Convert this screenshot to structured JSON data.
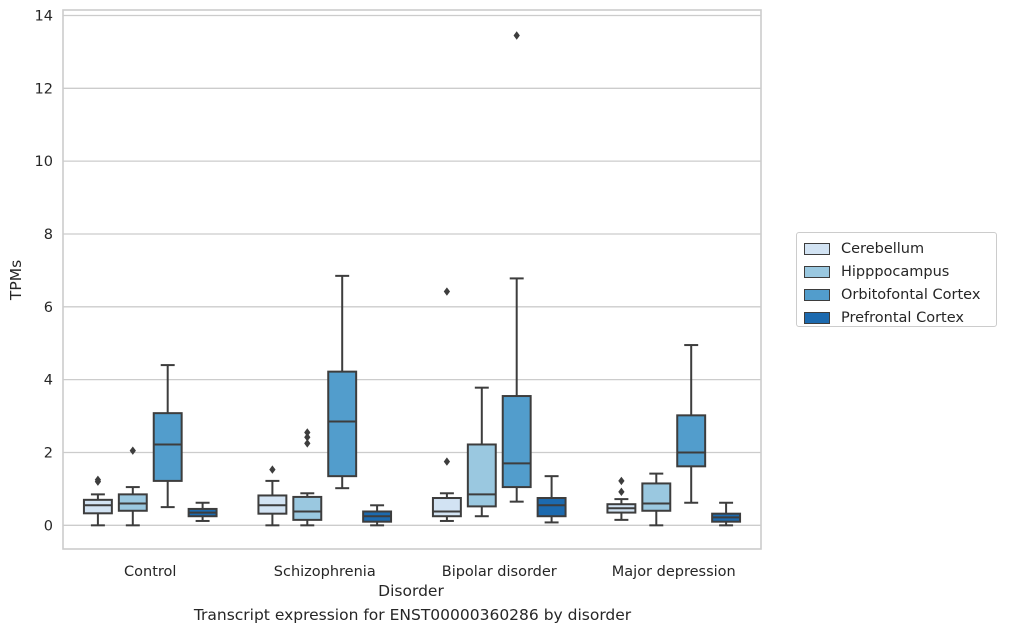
{
  "chart_data": {
    "type": "box",
    "xlabel": "Disorder",
    "ylabel": "TPMs",
    "caption": "Transcript expression for ENST00000360286 by disorder",
    "categories": [
      "Control",
      "Schizophrenia",
      "Bipolar disorder",
      "Major depression"
    ],
    "ylim": [
      -0.65,
      14.15
    ],
    "yticks": [
      0,
      2,
      4,
      6,
      8,
      10,
      12,
      14
    ],
    "grid": "horizontal",
    "legend_position": "center-right",
    "series": [
      {
        "name": "Cerebellum",
        "color": "#d2e3f3",
        "boxes": [
          {
            "category": "Control",
            "min": 0.0,
            "q1": 0.33,
            "median": 0.55,
            "q3": 0.7,
            "max": 0.85,
            "outliers": [
              1.2,
              1.25
            ]
          },
          {
            "category": "Schizophrenia",
            "min": 0.0,
            "q1": 0.32,
            "median": 0.55,
            "q3": 0.82,
            "max": 1.22,
            "outliers": [
              1.53
            ]
          },
          {
            "category": "Bipolar disorder",
            "min": 0.12,
            "q1": 0.25,
            "median": 0.38,
            "q3": 0.75,
            "max": 0.88,
            "outliers": [
              1.75,
              6.42
            ]
          },
          {
            "category": "Major depression",
            "min": 0.15,
            "q1": 0.35,
            "median": 0.47,
            "q3": 0.58,
            "max": 0.72,
            "outliers": [
              0.92,
              1.22
            ]
          }
        ]
      },
      {
        "name": "Hipppocampus",
        "color": "#9ac8e0",
        "boxes": [
          {
            "category": "Control",
            "min": 0.0,
            "q1": 0.4,
            "median": 0.6,
            "q3": 0.85,
            "max": 1.05,
            "outliers": [
              2.05
            ]
          },
          {
            "category": "Schizophrenia",
            "min": 0.0,
            "q1": 0.15,
            "median": 0.38,
            "q3": 0.78,
            "max": 0.88,
            "outliers": [
              2.25,
              2.42,
              2.55
            ]
          },
          {
            "category": "Bipolar disorder",
            "min": 0.25,
            "q1": 0.52,
            "median": 0.85,
            "q3": 2.22,
            "max": 3.78,
            "outliers": []
          },
          {
            "category": "Major depression",
            "min": 0.0,
            "q1": 0.4,
            "median": 0.6,
            "q3": 1.15,
            "max": 1.42,
            "outliers": []
          }
        ]
      },
      {
        "name": "Orbitofontal Cortex",
        "color": "#529dcc",
        "boxes": [
          {
            "category": "Control",
            "min": 0.5,
            "q1": 1.22,
            "median": 2.22,
            "q3": 3.08,
            "max": 4.4,
            "outliers": []
          },
          {
            "category": "Schizophrenia",
            "min": 1.02,
            "q1": 1.35,
            "median": 2.85,
            "q3": 4.22,
            "max": 6.85,
            "outliers": []
          },
          {
            "category": "Bipolar disorder",
            "min": 0.65,
            "q1": 1.05,
            "median": 1.7,
            "q3": 3.55,
            "max": 6.78,
            "outliers": [
              13.45
            ]
          },
          {
            "category": "Major depression",
            "min": 0.62,
            "q1": 1.62,
            "median": 2.0,
            "q3": 3.02,
            "max": 4.95,
            "outliers": []
          }
        ]
      },
      {
        "name": "Prefrontal Cortex",
        "color": "#1c6aaf",
        "boxes": [
          {
            "category": "Control",
            "min": 0.12,
            "q1": 0.25,
            "median": 0.35,
            "q3": 0.45,
            "max": 0.62,
            "outliers": []
          },
          {
            "category": "Schizophrenia",
            "min": 0.0,
            "q1": 0.1,
            "median": 0.25,
            "q3": 0.38,
            "max": 0.55,
            "outliers": []
          },
          {
            "category": "Bipolar disorder",
            "min": 0.08,
            "q1": 0.25,
            "median": 0.55,
            "q3": 0.75,
            "max": 1.35,
            "outliers": []
          },
          {
            "category": "Major depression",
            "min": 0.0,
            "q1": 0.1,
            "median": 0.22,
            "q3": 0.32,
            "max": 0.62,
            "outliers": []
          }
        ]
      }
    ]
  }
}
